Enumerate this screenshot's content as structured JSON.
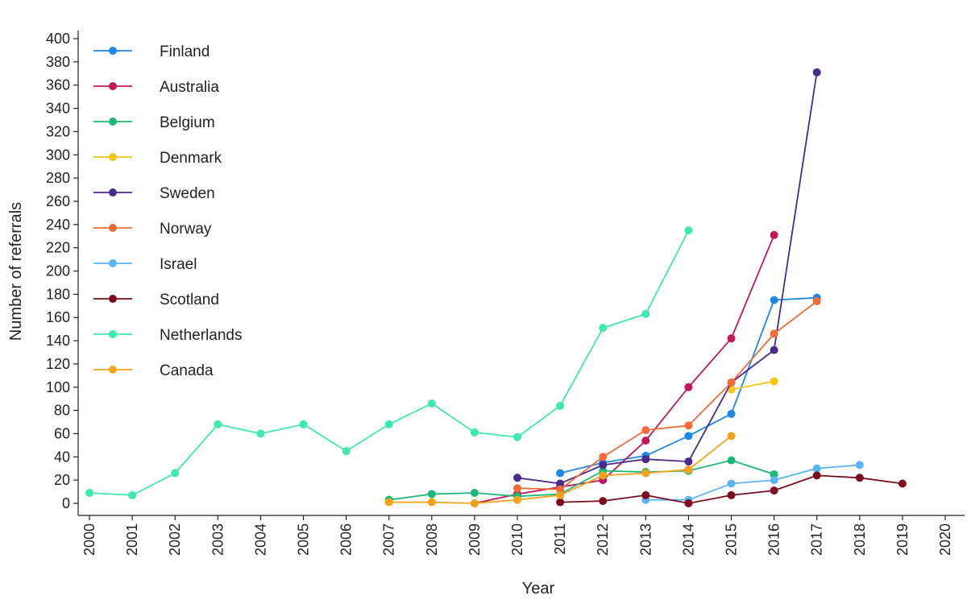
{
  "chart_data": {
    "type": "line",
    "title": "",
    "xlabel": "Year",
    "ylabel": "Number of referrals",
    "xlim": [
      2000,
      2020
    ],
    "ylim": [
      0,
      400
    ],
    "x_ticks": [
      "2000",
      "2001",
      "2002",
      "2003",
      "2004",
      "2005",
      "2006",
      "2007",
      "2008",
      "2009",
      "2010",
      "2011",
      "2012",
      "2013",
      "2014",
      "2015",
      "2016",
      "2017",
      "2018",
      "2019",
      "2020"
    ],
    "y_ticks": [
      "0",
      "20",
      "40",
      "60",
      "80",
      "100",
      "120",
      "140",
      "160",
      "180",
      "200",
      "220",
      "240",
      "260",
      "280",
      "300",
      "320",
      "340",
      "360",
      "380",
      "400"
    ],
    "grid": false,
    "legend_position": "top-left",
    "series": [
      {
        "name": "Finland",
        "color": "#1e88e5",
        "points": [
          [
            2011,
            26
          ],
          [
            2012,
            35
          ],
          [
            2013,
            41
          ],
          [
            2014,
            58
          ],
          [
            2015,
            77
          ],
          [
            2016,
            175
          ],
          [
            2017,
            177
          ]
        ]
      },
      {
        "name": "Australia",
        "color": "#c2185b",
        "points": [
          [
            2009,
            0
          ],
          [
            2010,
            8
          ],
          [
            2011,
            14
          ],
          [
            2012,
            20
          ],
          [
            2013,
            54
          ],
          [
            2014,
            100
          ],
          [
            2015,
            142
          ],
          [
            2016,
            231
          ]
        ]
      },
      {
        "name": "Belgium",
        "color": "#1db876",
        "points": [
          [
            2007,
            3
          ],
          [
            2008,
            8
          ],
          [
            2009,
            9
          ],
          [
            2010,
            6
          ],
          [
            2011,
            8
          ],
          [
            2012,
            28
          ],
          [
            2013,
            27
          ],
          [
            2014,
            28
          ],
          [
            2015,
            37
          ],
          [
            2016,
            25
          ]
        ]
      },
      {
        "name": "Denmark",
        "color": "#f5c518",
        "points": [
          [
            2015,
            98
          ],
          [
            2016,
            105
          ]
        ]
      },
      {
        "name": "Sweden",
        "color": "#4a2a8c",
        "points": [
          [
            2010,
            22
          ],
          [
            2011,
            17
          ],
          [
            2012,
            33
          ],
          [
            2013,
            38
          ],
          [
            2014,
            36
          ],
          [
            2015,
            104
          ],
          [
            2016,
            132
          ],
          [
            2017,
            371
          ]
        ]
      },
      {
        "name": "Norway",
        "color": "#f26b3a",
        "points": [
          [
            2010,
            13
          ],
          [
            2011,
            12
          ],
          [
            2012,
            40
          ],
          [
            2013,
            63
          ],
          [
            2014,
            67
          ],
          [
            2015,
            104
          ],
          [
            2016,
            146
          ],
          [
            2017,
            174
          ]
        ]
      },
      {
        "name": "Israel",
        "color": "#5ab4f5",
        "points": [
          [
            2013,
            3
          ],
          [
            2014,
            3
          ],
          [
            2015,
            17
          ],
          [
            2016,
            20
          ],
          [
            2017,
            30
          ],
          [
            2018,
            33
          ]
        ]
      },
      {
        "name": "Scotland",
        "color": "#7b0d1e",
        "points": [
          [
            2011,
            1
          ],
          [
            2012,
            2
          ],
          [
            2013,
            7
          ],
          [
            2014,
            0
          ],
          [
            2015,
            7
          ],
          [
            2016,
            11
          ],
          [
            2017,
            24
          ],
          [
            2018,
            22
          ],
          [
            2019,
            17
          ]
        ]
      },
      {
        "name": "Netherlands",
        "color": "#3ee8b0",
        "points": [
          [
            2000,
            9
          ],
          [
            2001,
            7
          ],
          [
            2002,
            26
          ],
          [
            2003,
            68
          ],
          [
            2004,
            60
          ],
          [
            2005,
            68
          ],
          [
            2006,
            45
          ],
          [
            2007,
            68
          ],
          [
            2008,
            86
          ],
          [
            2009,
            61
          ],
          [
            2010,
            57
          ],
          [
            2011,
            84
          ],
          [
            2012,
            151
          ],
          [
            2013,
            163
          ],
          [
            2014,
            235
          ]
        ]
      },
      {
        "name": "Canada",
        "color": "#f5a21b",
        "points": [
          [
            2007,
            1
          ],
          [
            2008,
            1
          ],
          [
            2009,
            0
          ],
          [
            2010,
            3
          ],
          [
            2011,
            7
          ],
          [
            2012,
            24
          ],
          [
            2013,
            26
          ],
          [
            2014,
            29
          ],
          [
            2015,
            58
          ]
        ]
      }
    ]
  }
}
